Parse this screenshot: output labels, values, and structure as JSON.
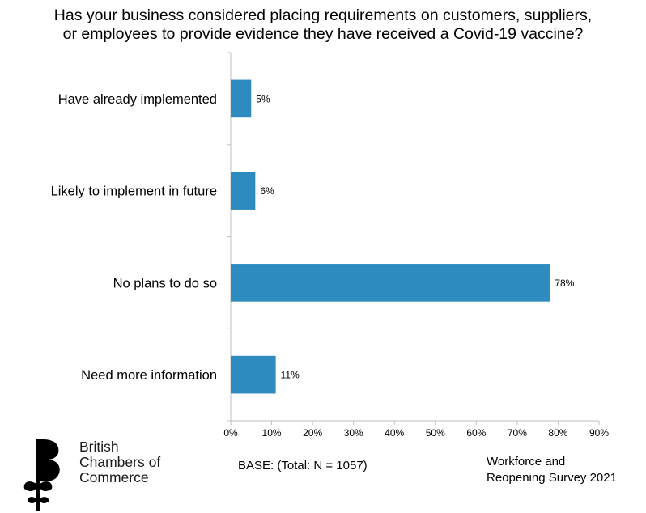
{
  "title_lines": [
    "Has your business considered placing requirements on customers, suppliers,",
    "or employees to provide evidence they have received a Covid-19 vaccine?"
  ],
  "chart_data": {
    "type": "bar",
    "orientation": "horizontal",
    "categories": [
      "Have already implemented",
      "Likely to implement in future",
      "No plans to do so",
      "Need more information"
    ],
    "values": [
      5,
      6,
      78,
      11
    ],
    "value_labels": [
      "5%",
      "6%",
      "78%",
      "11%"
    ],
    "xlim": [
      0,
      90
    ],
    "x_ticks": [
      0,
      10,
      20,
      30,
      40,
      50,
      60,
      70,
      80,
      90
    ],
    "x_tick_labels": [
      "0%",
      "10%",
      "20%",
      "30%",
      "40%",
      "50%",
      "60%",
      "70%",
      "80%",
      "90%"
    ],
    "bar_color": "#2e8bc0",
    "grid": false,
    "legend": "none"
  },
  "footer": {
    "base": "BASE: (Total: N = 1057)",
    "survey_lines": [
      "Workforce and",
      "Reopening Survey 2021"
    ]
  },
  "logo": {
    "lines": [
      "British",
      "Chambers of",
      "Commerce"
    ]
  }
}
